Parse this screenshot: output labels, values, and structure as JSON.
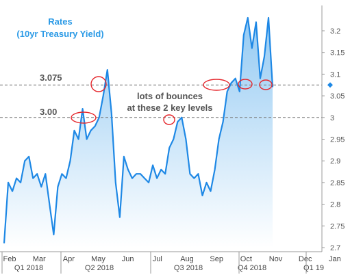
{
  "chart_data": {
    "type": "area",
    "title": "Rates",
    "subtitle": "(10yr Treasury Yield)",
    "ylim": [
      2.675,
      3.25
    ],
    "y_ticks": [
      "3.2",
      "3.15",
      "3.1",
      "3.05",
      "3",
      "2.95",
      "2.9",
      "2.85",
      "2.8",
      "2.75",
      "2.7"
    ],
    "y_tick_values": [
      3.2,
      3.15,
      3.1,
      3.05,
      3.0,
      2.95,
      2.9,
      2.85,
      2.8,
      2.75,
      2.7
    ],
    "month_labels": [
      "Feb",
      "Mar",
      "Apr",
      "May",
      "Jun",
      "Jul",
      "Aug",
      "Sep",
      "Oct",
      "Nov",
      "Dec",
      "Jan"
    ],
    "quarter_labels": [
      "Q1 2018",
      "Q2 2018",
      "Q3 2018",
      "Q4 2018",
      "Q1 19"
    ],
    "reference_lines": [
      {
        "label": "3.075",
        "value": 3.075
      },
      {
        "label": "3.00",
        "value": 3.0
      }
    ],
    "annotation_lines": [
      "lots of bounces",
      "at these 2 key levels"
    ],
    "last_value": 3.075,
    "grid": false,
    "series": [
      {
        "x": [
          0.0,
          0.15,
          0.3,
          0.45,
          0.6,
          0.75,
          0.9,
          1.05,
          1.2,
          1.35,
          1.5,
          1.65,
          1.8,
          1.95,
          2.1,
          2.25,
          2.4,
          2.55,
          2.7,
          2.85,
          3.0,
          3.15,
          3.3,
          3.45,
          3.6,
          3.75,
          3.9,
          4.05,
          4.2,
          4.35,
          4.5,
          4.65,
          4.8,
          4.95,
          5.1,
          5.25,
          5.4,
          5.55,
          5.7,
          5.85,
          6.0,
          6.15,
          6.3,
          6.45,
          6.6,
          6.75,
          6.9,
          7.05,
          7.2,
          7.35,
          7.5,
          7.65,
          7.8,
          7.95,
          8.1,
          8.25,
          8.4,
          8.55,
          8.7,
          8.85,
          9.0,
          9.15,
          9.3,
          9.45,
          9.6,
          9.75
        ],
        "values": [
          2.71,
          2.85,
          2.83,
          2.86,
          2.85,
          2.9,
          2.91,
          2.86,
          2.87,
          2.84,
          2.87,
          2.8,
          2.73,
          2.84,
          2.87,
          2.86,
          2.9,
          2.97,
          2.95,
          3.02,
          2.95,
          2.97,
          2.98,
          3.0,
          3.05,
          3.11,
          3.01,
          2.85,
          2.77,
          2.91,
          2.88,
          2.86,
          2.87,
          2.87,
          2.86,
          2.85,
          2.89,
          2.86,
          2.88,
          2.87,
          2.93,
          2.95,
          2.99,
          3.0,
          2.95,
          2.87,
          2.86,
          2.87,
          2.82,
          2.85,
          2.83,
          2.88,
          2.95,
          2.99,
          3.06,
          3.08,
          3.09,
          3.06,
          3.19,
          3.23,
          3.16,
          3.22,
          3.09,
          3.14,
          3.23,
          3.07
        ]
      }
    ]
  }
}
